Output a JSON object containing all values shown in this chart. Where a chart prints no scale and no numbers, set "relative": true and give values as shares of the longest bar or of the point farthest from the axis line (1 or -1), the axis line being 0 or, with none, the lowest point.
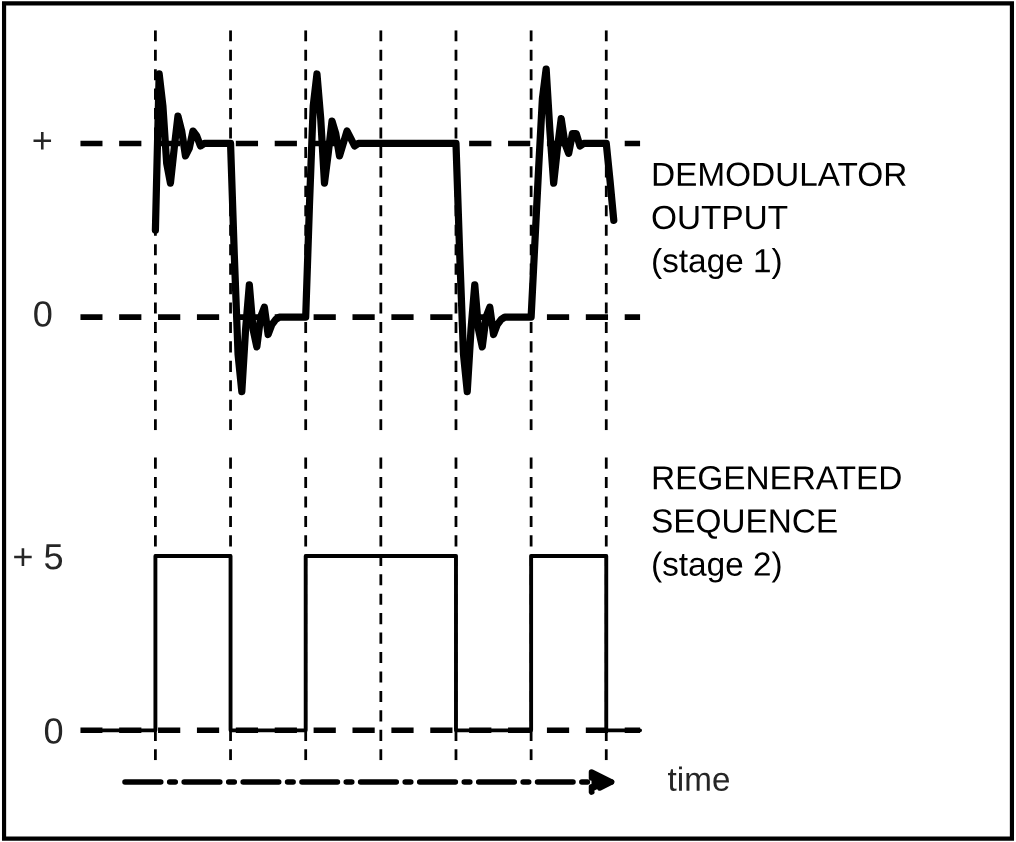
{
  "chart_data": [
    {
      "type": "line",
      "relative": true,
      "grid": "x",
      "categories": [
        null,
        null,
        null,
        null,
        null,
        null,
        null,
        null,
        null,
        null,
        null,
        null,
        null,
        null,
        null,
        null,
        null,
        null,
        null,
        null,
        null,
        null,
        null,
        null,
        null,
        null,
        null,
        null,
        null,
        null,
        null,
        null,
        null,
        null,
        null,
        null,
        null,
        null,
        null,
        null,
        null,
        null,
        null,
        null,
        null,
        null,
        null,
        null,
        null,
        null,
        null,
        null,
        null,
        null,
        null,
        null,
        null,
        null,
        null,
        null,
        null,
        null,
        null,
        null,
        null,
        null,
        null,
        null,
        null,
        null,
        null,
        null,
        null,
        null,
        null,
        null,
        null,
        null,
        null,
        null,
        null,
        null,
        null,
        null,
        null,
        null,
        null,
        null,
        null,
        null,
        null,
        null,
        null,
        null,
        null,
        null,
        null,
        null,
        null,
        null,
        null,
        null,
        null,
        null,
        null,
        null,
        null,
        null,
        null,
        null,
        null,
        null,
        null,
        null,
        null,
        null,
        null,
        null,
        null,
        null,
        null,
        null,
        null,
        null,
        null,
        null,
        null,
        null,
        null,
        null,
        null,
        null,
        null,
        null,
        null,
        null,
        null,
        null,
        null,
        null,
        null,
        null,
        null,
        null,
        null,
        null,
        null,
        null,
        null,
        null
      ],
      "series": [
        {
          "name": "DEMODULATOR\nOUTPUT\n(stage 1)",
          "color": "#000000",
          "values": [
            null,
            null,
            null,
            null,
            null,
            null,
            null,
            null,
            null,
            null,
            null,
            null,
            null,
            null,
            null,
            null,
            null,
            null,
            null,
            null,
            0.35,
            0.98,
            0.85,
            0.62,
            0.54,
            0.68,
            0.81,
            0.75,
            0.65,
            0.68,
            0.75,
            0.73,
            0.69,
            0.7,
            0.7,
            0.7,
            0.7,
            0.7,
            0.7,
            0.7,
            0.7,
            0.25,
            -0.15,
            -0.3,
            -0.05,
            0.13,
            -0.05,
            -0.12,
            0.0,
            0.04,
            -0.07,
            -0.03,
            -0.01,
            0,
            0,
            0,
            0,
            0,
            0,
            0,
            0,
            0.45,
            0.85,
            0.98,
            0.8,
            0.54,
            0.66,
            0.79,
            0.74,
            0.65,
            0.7,
            0.75,
            0.72,
            0.69,
            0.7,
            0.7,
            0.7,
            0.7,
            0.7,
            0.7,
            0.7,
            0.7,
            0.7,
            0.7,
            0.7,
            0.7,
            0.7,
            0.7,
            0.7,
            0.7,
            0.7,
            0.7,
            0.7,
            0.7,
            0.7,
            0.7,
            0.7,
            0.7,
            0.7,
            0.7,
            0.7,
            0.25,
            -0.15,
            -0.3,
            -0.05,
            0.13,
            -0.05,
            -0.12,
            0.0,
            0.04,
            -0.07,
            -0.03,
            -0.01,
            0,
            0,
            0,
            0,
            0,
            0,
            0,
            0,
            0.3,
            0.6,
            0.88,
            1.0,
            0.75,
            0.54,
            0.68,
            0.8,
            0.7,
            0.66,
            0.74,
            0.74,
            0.69,
            0.7,
            0.7,
            0.7,
            0.7,
            0.7,
            0.7,
            0.7,
            0.55,
            0.39,
            null,
            null,
            null,
            null,
            null,
            null,
            null
          ]
        }
      ],
      "ref_lines": [
        {
          "axis": "y",
          "value": 0.7,
          "label": "+",
          "line_style": "dashed"
        },
        {
          "axis": "y",
          "value": 0,
          "label": "0",
          "line_style": "dashed"
        }
      ]
    },
    {
      "type": "step",
      "xlabel": "time",
      "grid": "x",
      "ylim": [
        -0.86,
        8.05
      ],
      "yticks": [
        {
          "value": 5,
          "label": "+ 5"
        },
        {
          "value": 0,
          "label": "0"
        }
      ],
      "categories": [
        null,
        null,
        null,
        null,
        null,
        null,
        null,
        null,
        null,
        null,
        null,
        null,
        null,
        null,
        null,
        null,
        null,
        null,
        null,
        null,
        null,
        null,
        null,
        null,
        null,
        null,
        null,
        null,
        null,
        null,
        null,
        null,
        null,
        null,
        null,
        null,
        null,
        null,
        null,
        null,
        null,
        null,
        null,
        null,
        null,
        null,
        null,
        null,
        null,
        null,
        null,
        null,
        null,
        null,
        null,
        null,
        null,
        null,
        null,
        null,
        null,
        null,
        null,
        null,
        null,
        null,
        null,
        null,
        null,
        null,
        null,
        null,
        null,
        null,
        null,
        null,
        null,
        null,
        null,
        null,
        null,
        null,
        null,
        null,
        null,
        null,
        null,
        null,
        null,
        null,
        null,
        null,
        null,
        null,
        null,
        null,
        null,
        null,
        null,
        null,
        null,
        null,
        null,
        null,
        null,
        null,
        null,
        null,
        null,
        null,
        null,
        null,
        null,
        null,
        null,
        null,
        null,
        null,
        null,
        null,
        null,
        null,
        null,
        null,
        null,
        null,
        null,
        null,
        null,
        null,
        null,
        null,
        null,
        null,
        null,
        null,
        null,
        null,
        null,
        null,
        null,
        null,
        null,
        null,
        null,
        null,
        null,
        null,
        null,
        null
      ],
      "series": [
        {
          "name": "REGENERATED\nSEQUENCE\n(stage 2)",
          "color": "#000000",
          "values": [
            null,
            null,
            null,
            null,
            null,
            null,
            0,
            0,
            0,
            0,
            0,
            0,
            0,
            0,
            0,
            0,
            0,
            0,
            0,
            0,
            5,
            5,
            5,
            5,
            5,
            5,
            5,
            5,
            5,
            5,
            5,
            5,
            5,
            5,
            5,
            5,
            5,
            5,
            5,
            5,
            0,
            0,
            0,
            0,
            0,
            0,
            0,
            0,
            0,
            0,
            0,
            0,
            0,
            0,
            0,
            0,
            0,
            0,
            0,
            0,
            5,
            5,
            5,
            5,
            5,
            5,
            5,
            5,
            5,
            5,
            5,
            5,
            5,
            5,
            5,
            5,
            5,
            5,
            5,
            5,
            5,
            5,
            5,
            5,
            5,
            5,
            5,
            5,
            5,
            5,
            5,
            5,
            5,
            5,
            5,
            5,
            5,
            5,
            5,
            5,
            0,
            0,
            0,
            0,
            0,
            0,
            0,
            0,
            0,
            0,
            0,
            0,
            0,
            0,
            0,
            0,
            0,
            0,
            0,
            0,
            5,
            5,
            5,
            5,
            5,
            5,
            5,
            5,
            5,
            5,
            5,
            5,
            5,
            5,
            5,
            5,
            5,
            5,
            5,
            5,
            0,
            0,
            0,
            0,
            0,
            0,
            0,
            0,
            0,
            null
          ]
        }
      ],
      "ref_lines": [
        {
          "axis": "y",
          "value": 0,
          "line_style": "dashed"
        }
      ]
    }
  ]
}
